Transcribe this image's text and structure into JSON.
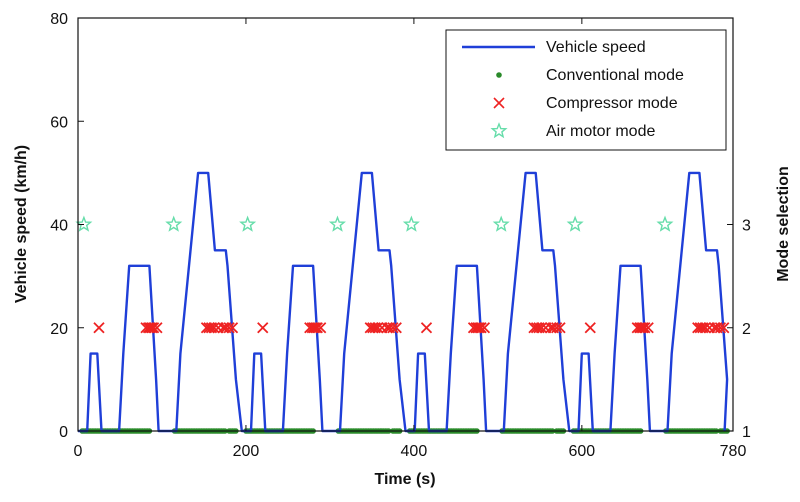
{
  "chart_data": {
    "type": "line",
    "xlabel": "Time (s)",
    "ylabel_left": "Vehicle speed (km/h)",
    "ylabel_right": "Mode selection",
    "xlim": [
      0,
      780
    ],
    "ylim_left": [
      0,
      80
    ],
    "ylim_right": [
      1,
      5
    ],
    "xticks": [
      0,
      200,
      400,
      600,
      780
    ],
    "xtick_labels": [
      "0",
      "200",
      "400",
      "600",
      "780"
    ],
    "yticks_left": [
      0,
      20,
      40,
      60,
      80
    ],
    "ytick_labels_left": [
      "0",
      "20",
      "40",
      "60",
      "80"
    ],
    "yticks_right": [
      1,
      2,
      3
    ],
    "ytick_labels_right": [
      "1",
      "2",
      "3"
    ],
    "grid": false,
    "legend_position": "top-right",
    "legend": [
      {
        "label": "Vehicle speed",
        "kind": "line",
        "color": "#1f3fd8"
      },
      {
        "label": "Conventional mode",
        "kind": "dot",
        "color": "#2a8a2a"
      },
      {
        "label": "Compressor mode",
        "kind": "cross",
        "color": "#ee2222"
      },
      {
        "label": "Air motor mode",
        "kind": "star",
        "color": "#66ddaa"
      }
    ],
    "cycle_length": 195,
    "cycle_offsets": [
      0,
      195,
      390,
      585
    ],
    "speed_cycle": {
      "x": [
        0,
        11,
        15,
        23,
        28,
        49,
        54,
        61,
        85,
        93,
        96,
        117,
        122,
        143,
        155,
        163,
        176,
        178,
        188,
        195
      ],
      "y": [
        0,
        0,
        15,
        15,
        0,
        0,
        15,
        32,
        32,
        10,
        0,
        0,
        15,
        50,
        50,
        35,
        35,
        32,
        10,
        0
      ]
    },
    "speed_final_x": 770,
    "conventional_segments": [
      [
        5,
        85
      ],
      [
        115,
        175
      ],
      [
        180,
        188
      ]
    ],
    "compressor_times": [
      25,
      81,
      84,
      86,
      88,
      90,
      94,
      153,
      156,
      159,
      162,
      167,
      173,
      176,
      180,
      184
    ],
    "air_motor_times": [
      7,
      114
    ],
    "colors": {
      "speed": "#1f3fd8",
      "conventional": "#2a8a2a",
      "compressor": "#ee2222",
      "air_motor": "#66ddaa",
      "axis": "#111111"
    }
  }
}
